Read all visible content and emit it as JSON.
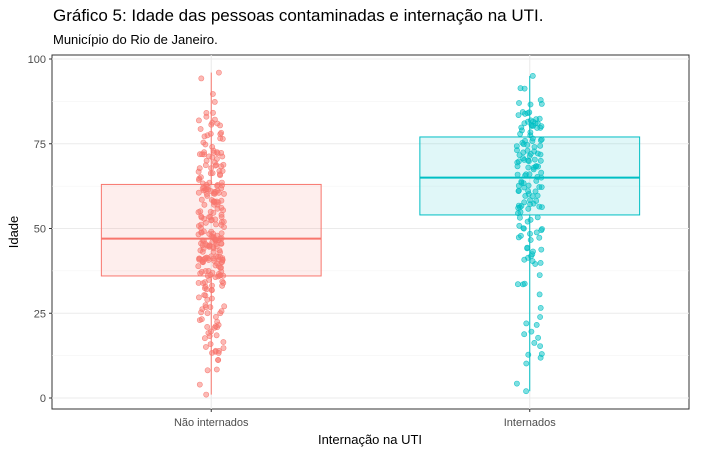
{
  "chart_data": {
    "type": "box",
    "title": "Gráfico 5: Idade das pessoas contaminadas e internação na UTI.",
    "subtitle": "Município do Rio de Janeiro.",
    "xlabel": "Internação na UTI",
    "ylabel": "Idade",
    "ylim": [
      0,
      100
    ],
    "yticks": [
      0,
      25,
      50,
      75,
      100
    ],
    "grid": true,
    "legend": "none",
    "categories": [
      "Não internados",
      "Internados"
    ],
    "boxes": [
      {
        "category": "Não internados",
        "color": "#F8766D",
        "min": 1,
        "q1": 36,
        "median": 47,
        "q3": 63,
        "max": 96,
        "n_points": 260
      },
      {
        "category": "Internados",
        "color": "#00BFC4",
        "min": 2,
        "q1": 54,
        "median": 65,
        "q3": 77,
        "max": 95,
        "n_points": 150
      }
    ]
  }
}
